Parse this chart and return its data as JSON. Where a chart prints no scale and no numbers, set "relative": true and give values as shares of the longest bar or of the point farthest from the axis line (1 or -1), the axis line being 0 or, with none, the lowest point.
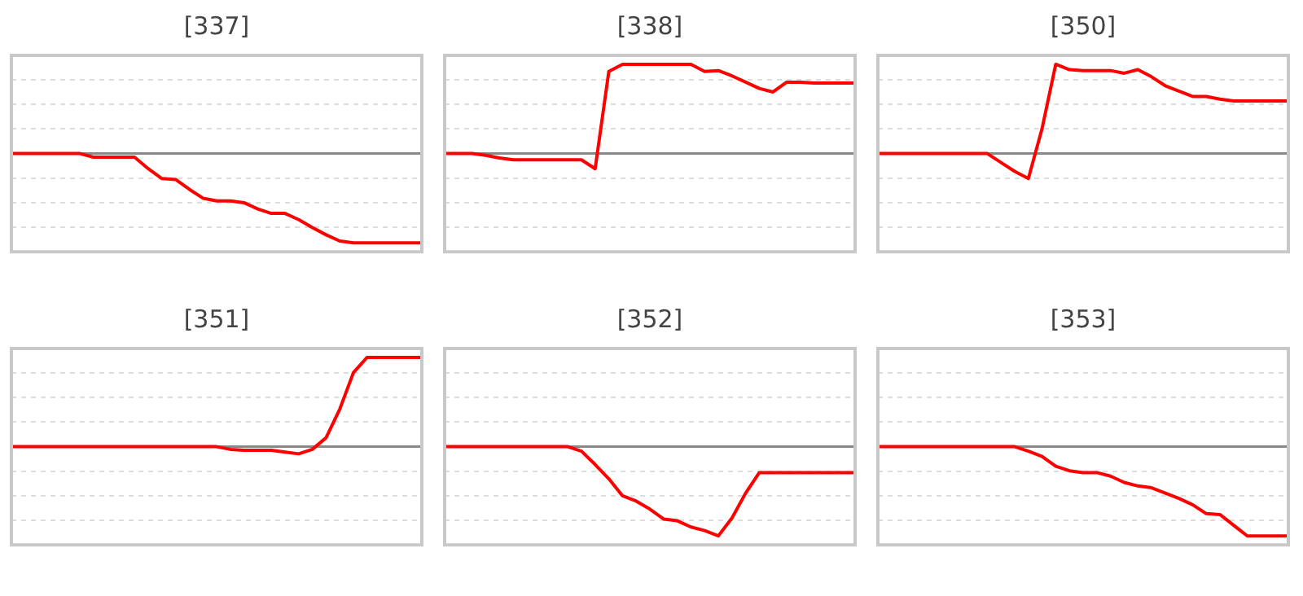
{
  "chart_data": [
    {
      "type": "line",
      "title": "[337]",
      "relative": true,
      "grid": "y",
      "legend": false,
      "marker": "none",
      "categories": [
        null,
        null,
        null,
        null,
        null,
        null,
        null,
        null,
        null,
        null,
        null,
        null,
        null,
        null,
        null,
        null,
        null,
        null,
        null,
        null,
        null,
        null,
        null,
        null,
        null,
        null,
        null,
        null,
        null,
        null,
        null
      ],
      "series": [
        {
          "color": "#ff0000",
          "values": [
            0,
            0,
            0,
            0,
            0,
            0,
            -0.04,
            -0.04,
            -0.04,
            -0.04,
            -0.17,
            -0.28,
            -0.29,
            -0.4,
            -0.5,
            -0.53,
            -0.53,
            -0.55,
            -0.62,
            -0.67,
            -0.67,
            -0.74,
            -0.83,
            -0.91,
            -0.98,
            -1,
            -1,
            -1,
            -1,
            -1,
            -1
          ]
        }
      ]
    },
    {
      "type": "line",
      "title": "[338]",
      "relative": true,
      "grid": "y",
      "legend": false,
      "marker": "none",
      "categories": [
        null,
        null,
        null,
        null,
        null,
        null,
        null,
        null,
        null,
        null,
        null,
        null,
        null,
        null,
        null,
        null,
        null,
        null,
        null,
        null,
        null,
        null,
        null,
        null,
        null,
        null,
        null,
        null,
        null,
        null,
        null
      ],
      "series": [
        {
          "color": "#ff0000",
          "values": [
            0,
            0,
            0,
            -0.02,
            -0.05,
            -0.07,
            -0.07,
            -0.07,
            -0.07,
            -0.07,
            -0.07,
            -0.17,
            0.92,
            1,
            1,
            1,
            1,
            1,
            1,
            0.92,
            0.93,
            0.87,
            0.8,
            0.73,
            0.69,
            0.8,
            0.8,
            0.79,
            0.79,
            0.79,
            0.79
          ]
        }
      ]
    },
    {
      "type": "line",
      "title": "[350]",
      "relative": true,
      "grid": "y",
      "legend": false,
      "marker": "none",
      "categories": [
        null,
        null,
        null,
        null,
        null,
        null,
        null,
        null,
        null,
        null,
        null,
        null,
        null,
        null,
        null,
        null,
        null,
        null,
        null,
        null,
        null,
        null,
        null,
        null,
        null,
        null,
        null,
        null,
        null,
        null,
        null
      ],
      "series": [
        {
          "color": "#ff0000",
          "values": [
            0,
            0,
            0,
            0,
            0,
            0,
            0,
            0,
            0,
            -0.1,
            -0.2,
            -0.28,
            0.28,
            1,
            0.94,
            0.93,
            0.93,
            0.93,
            0.9,
            0.94,
            0.86,
            0.76,
            0.7,
            0.64,
            0.64,
            0.61,
            0.59,
            0.59,
            0.59,
            0.59,
            0.59
          ]
        }
      ]
    },
    {
      "type": "line",
      "title": "[351]",
      "relative": true,
      "grid": "y",
      "legend": false,
      "marker": "none",
      "categories": [
        null,
        null,
        null,
        null,
        null,
        null,
        null,
        null,
        null,
        null,
        null,
        null,
        null,
        null,
        null,
        null,
        null,
        null,
        null,
        null,
        null,
        null,
        null,
        null,
        null,
        null,
        null,
        null,
        null,
        null,
        null
      ],
      "series": [
        {
          "color": "#ff0000",
          "values": [
            0,
            0,
            0,
            0,
            0,
            0,
            0,
            0,
            0,
            0,
            0,
            0,
            0,
            0,
            0,
            0,
            -0.03,
            -0.04,
            -0.04,
            -0.04,
            -0.06,
            -0.08,
            -0.03,
            0.1,
            0.42,
            0.83,
            1,
            1,
            1,
            1,
            1
          ]
        }
      ]
    },
    {
      "type": "line",
      "title": "[352]",
      "relative": true,
      "grid": "y",
      "legend": false,
      "marker": "none",
      "categories": [
        null,
        null,
        null,
        null,
        null,
        null,
        null,
        null,
        null,
        null,
        null,
        null,
        null,
        null,
        null,
        null,
        null,
        null,
        null,
        null,
        null,
        null,
        null,
        null,
        null,
        null,
        null,
        null,
        null,
        null,
        null
      ],
      "series": [
        {
          "color": "#ff0000",
          "values": [
            0,
            0,
            0,
            0,
            0,
            0,
            0,
            0,
            0,
            0,
            -0.05,
            -0.2,
            -0.36,
            -0.55,
            -0.61,
            -0.7,
            -0.81,
            -0.83,
            -0.9,
            -0.94,
            -1,
            -0.8,
            -0.52,
            -0.29,
            -0.29,
            -0.29,
            -0.29,
            -0.29,
            -0.29,
            -0.29,
            -0.29
          ]
        }
      ]
    },
    {
      "type": "line",
      "title": "[353]",
      "relative": true,
      "grid": "y",
      "legend": false,
      "marker": "none",
      "categories": [
        null,
        null,
        null,
        null,
        null,
        null,
        null,
        null,
        null,
        null,
        null,
        null,
        null,
        null,
        null,
        null,
        null,
        null,
        null,
        null,
        null,
        null,
        null,
        null,
        null,
        null,
        null,
        null,
        null,
        null,
        null
      ],
      "series": [
        {
          "color": "#ff0000",
          "values": [
            0,
            0,
            0,
            0,
            0,
            0,
            0,
            0,
            0,
            0,
            0,
            -0.05,
            -0.11,
            -0.22,
            -0.27,
            -0.29,
            -0.29,
            -0.33,
            -0.4,
            -0.44,
            -0.46,
            -0.52,
            -0.58,
            -0.65,
            -0.75,
            -0.76,
            -0.88,
            -1,
            -1,
            -1,
            -1
          ]
        }
      ]
    }
  ]
}
